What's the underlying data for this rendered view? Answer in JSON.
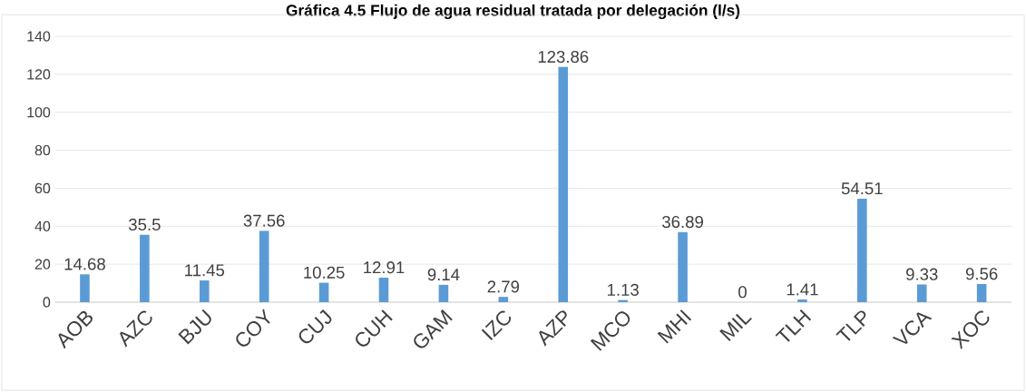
{
  "chart_data": {
    "type": "bar",
    "title": "Gráfica 4.5 Flujo de agua residual tratada por delegación (l/s)",
    "categories": [
      "AOB",
      "AZC",
      "BJU",
      "COY",
      "CUJ",
      "CUH",
      "GAM",
      "IZC",
      "AZP",
      "MCO",
      "MHI",
      "MIL",
      "TLH",
      "TLP",
      "VCA",
      "XOC"
    ],
    "values": [
      14.68,
      35.5,
      11.45,
      37.56,
      10.25,
      12.91,
      9.14,
      2.79,
      123.86,
      1.13,
      36.89,
      0,
      1.41,
      54.51,
      9.33,
      9.56
    ],
    "color": "#5b9bd5",
    "ylim": [
      0,
      140
    ],
    "yticks": [
      0,
      20,
      40,
      60,
      80,
      100,
      120,
      140
    ],
    "grid": "y",
    "data_labels": true
  }
}
